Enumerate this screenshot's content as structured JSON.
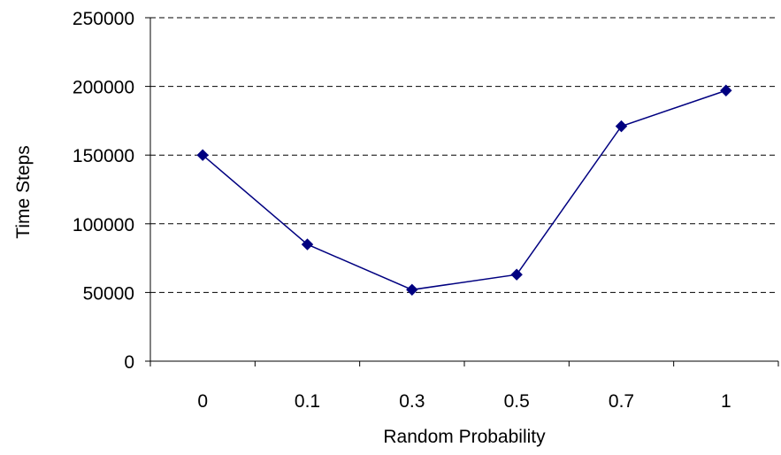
{
  "chart_data": {
    "type": "line",
    "title": "",
    "xlabel": "Random Probability",
    "ylabel": "Time Steps",
    "categories": [
      "0",
      "0.1",
      "0.3",
      "0.5",
      "0.7",
      "1"
    ],
    "series": [
      {
        "values": [
          150000,
          85000,
          52000,
          63000,
          171000,
          197000
        ],
        "color": "#000080",
        "marker": "diamond"
      }
    ],
    "yticks": [
      "0",
      "50000",
      "100000",
      "150000",
      "200000",
      "250000"
    ],
    "ylim": [
      0,
      250000
    ],
    "grid": "horizontal dashed",
    "legend": "none",
    "colors": {
      "series": "#000080",
      "axis": "#000000",
      "grid": "#000000"
    }
  }
}
